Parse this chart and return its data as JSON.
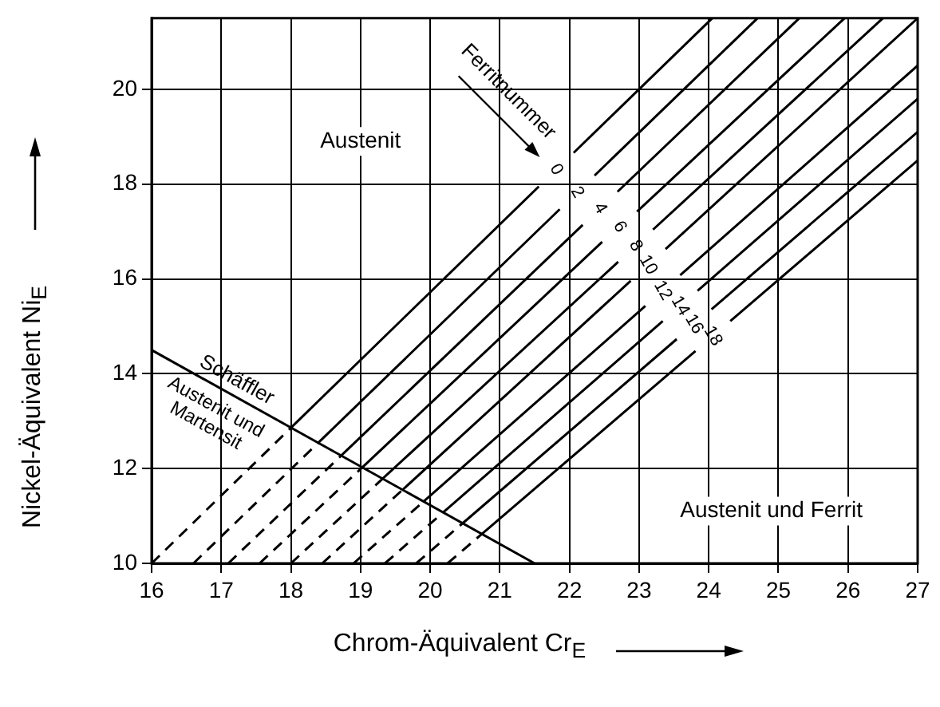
{
  "chart_data": {
    "type": "line",
    "xlabel": "Chrom-Äquivalent Cr$_{E}$",
    "ylabel": "Nickel-Äquivalent Ni$_{E}$",
    "xlim": [
      16,
      27
    ],
    "ylim": [
      10,
      21.5
    ],
    "xticks": [
      16,
      17,
      18,
      19,
      20,
      21,
      22,
      23,
      24,
      25,
      26,
      27
    ],
    "yticks": [
      10,
      12,
      14,
      16,
      18,
      20
    ],
    "grid": true,
    "legend": false,
    "marker": "none",
    "series": [
      {
        "color": "#000000",
        "line_style": "solid",
        "x": [
          16,
          21.5
        ],
        "values": [
          14.5,
          10
        ]
      },
      {
        "color": "#000000",
        "line_style": "dashed",
        "x": [
          16,
          18.0
        ],
        "values": [
          10,
          12.86
        ]
      },
      {
        "color": "#000000",
        "line_style": "solid",
        "x": [
          18.0,
          21.56,
          21.81,
          22.06,
          24.05
        ],
        "values": [
          12.86,
          17.95,
          null,
          18.66,
          21.5
        ]
      },
      {
        "color": "#000000",
        "line_style": "dashed",
        "x": [
          16.6,
          18.39
        ],
        "values": [
          10,
          12.54
        ]
      },
      {
        "color": "#000000",
        "line_style": "solid",
        "x": [
          18.39,
          21.86,
          22.11,
          22.36,
          24.7
        ],
        "values": [
          12.54,
          17.47,
          null,
          18.18,
          21.5
        ]
      },
      {
        "color": "#000000",
        "line_style": "dashed",
        "x": [
          17.1,
          18.72
        ],
        "values": [
          10,
          12.27
        ]
      },
      {
        "color": "#000000",
        "line_style": "solid",
        "x": [
          18.72,
          22.19,
          22.44,
          22.69,
          25.3
        ],
        "values": [
          12.27,
          17.14,
          null,
          17.84,
          21.5
        ]
      },
      {
        "color": "#000000",
        "line_style": "dashed",
        "x": [
          17.55,
          19.03
        ],
        "values": [
          10,
          12.03
        ]
      },
      {
        "color": "#000000",
        "line_style": "solid",
        "x": [
          19.03,
          22.47,
          22.72,
          22.97,
          25.95
        ],
        "values": [
          12.03,
          16.78,
          null,
          17.42,
          21.5
        ]
      },
      {
        "color": "#000000",
        "line_style": "dashed",
        "x": [
          18.0,
          19.32
        ],
        "values": [
          10,
          11.79
        ]
      },
      {
        "color": "#000000",
        "line_style": "solid",
        "x": [
          19.32,
          22.7,
          22.95,
          23.2,
          26.5
        ],
        "values": [
          11.79,
          16.36,
          null,
          17.04,
          21.5
        ]
      },
      {
        "color": "#000000",
        "line_style": "dashed",
        "x": [
          18.45,
          19.61
        ],
        "values": [
          10,
          11.56
        ]
      },
      {
        "color": "#000000",
        "line_style": "solid",
        "x": [
          19.61,
          22.88,
          23.13,
          23.38,
          27
        ],
        "values": [
          11.56,
          15.96,
          null,
          16.63,
          21.5
        ]
      },
      {
        "color": "#000000",
        "line_style": "dashed",
        "x": [
          18.9,
          19.91
        ],
        "values": [
          10,
          11.31
        ]
      },
      {
        "color": "#000000",
        "line_style": "solid",
        "x": [
          19.91,
          23.09,
          23.34,
          23.59,
          27
        ],
        "values": [
          11.31,
          15.43,
          null,
          16.08,
          20.5
        ]
      },
      {
        "color": "#000000",
        "line_style": "dashed",
        "x": [
          19.35,
          20.19
        ],
        "values": [
          10,
          11.08
        ]
      },
      {
        "color": "#000000",
        "line_style": "solid",
        "x": [
          20.19,
          23.34,
          23.59,
          23.84,
          27
        ],
        "values": [
          11.08,
          15.11,
          null,
          15.75,
          19.8
        ]
      },
      {
        "color": "#000000",
        "line_style": "dashed",
        "x": [
          19.8,
          20.47
        ],
        "values": [
          10,
          10.85
        ]
      },
      {
        "color": "#000000",
        "line_style": "solid",
        "x": [
          20.47,
          23.54,
          23.79,
          24.04,
          27
        ],
        "values": [
          10.85,
          14.73,
          null,
          15.36,
          19.1
        ]
      },
      {
        "color": "#000000",
        "line_style": "dashed",
        "x": [
          20.25,
          20.75
        ],
        "values": [
          10,
          10.63
        ]
      },
      {
        "color": "#000000",
        "line_style": "solid",
        "x": [
          20.75,
          23.81,
          24.06,
          24.31,
          27
        ],
        "values": [
          10.63,
          14.48,
          null,
          15.11,
          18.5
        ]
      }
    ],
    "annotations": [
      "Austenit",
      "Austenit und Ferrit",
      "Schäffler",
      "Austenit und Martensit",
      "Ferritnummer",
      "0",
      "2",
      "4",
      "6",
      "8",
      "10",
      "12",
      "14",
      "16",
      "18"
    ]
  }
}
